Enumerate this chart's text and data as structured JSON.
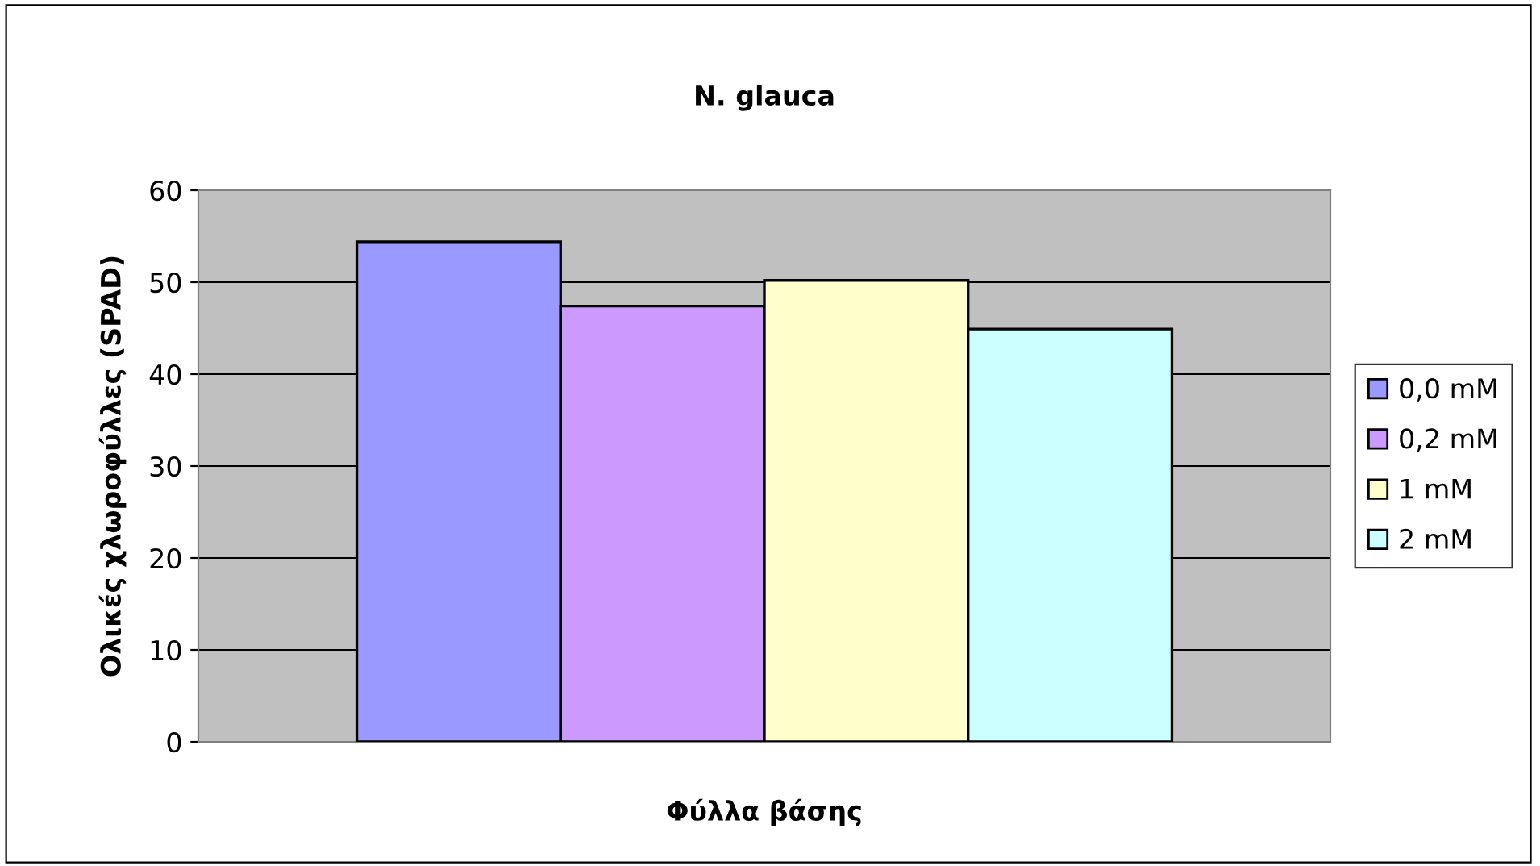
{
  "chart_data": {
    "type": "bar",
    "title": "N. glauca",
    "xlabel": "Φύλλα βάσης",
    "ylabel": "Ολικές χλωροφύλλες (SPAD)",
    "categories": [
      null
    ],
    "series": [
      {
        "name": "0,0 mM",
        "color": "#9999ff",
        "values": [
          54.4
        ]
      },
      {
        "name": "0,2 mM",
        "color": "#cc99ff",
        "values": [
          47.4
        ]
      },
      {
        "name": "1 mM",
        "color": "#ffffcc",
        "values": [
          50.2
        ]
      },
      {
        "name": "2 mM",
        "color": "#ccffff",
        "values": [
          44.9
        ]
      }
    ],
    "ylim": [
      0,
      60
    ],
    "yticks": [
      0,
      10,
      20,
      30,
      40,
      50,
      60
    ],
    "grid": "y",
    "legend": "right"
  }
}
